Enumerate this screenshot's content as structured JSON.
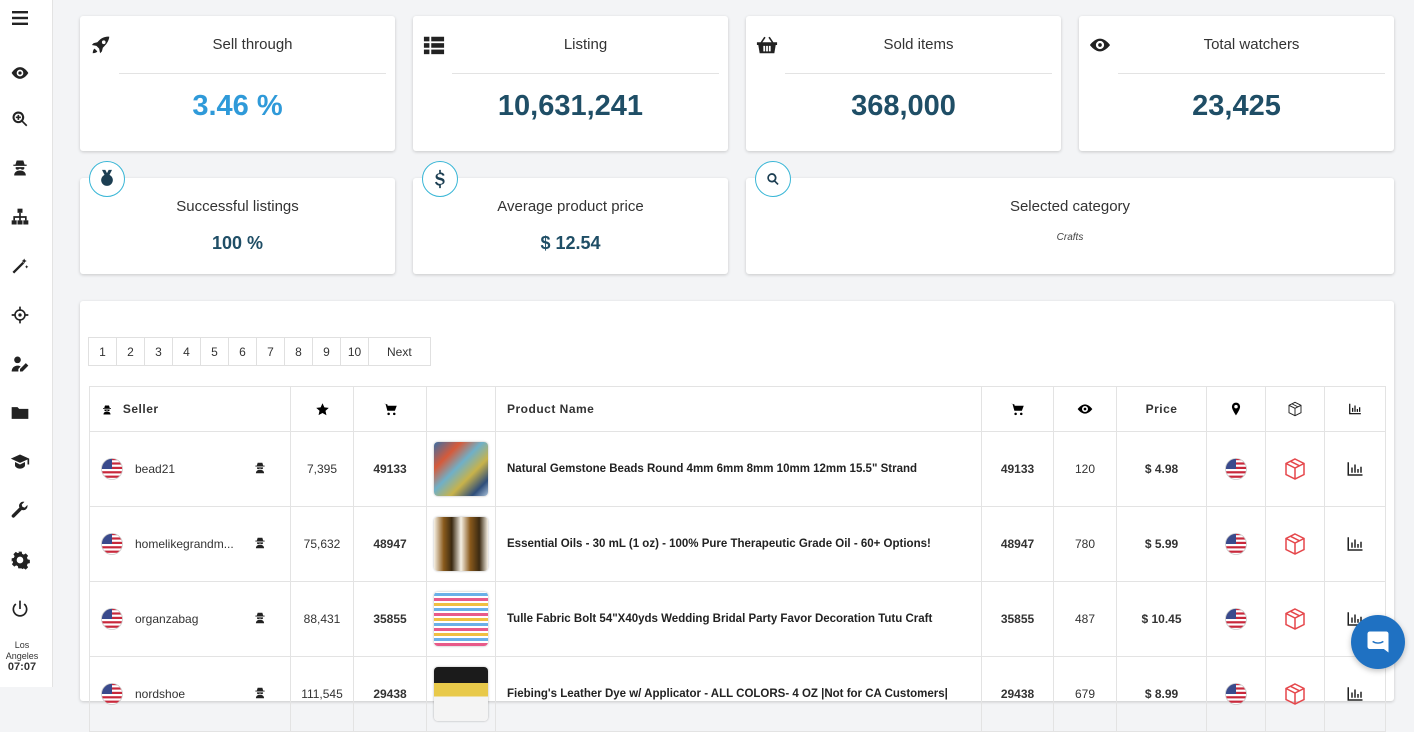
{
  "sidebar": {
    "icons": [
      "menu-icon",
      "eye-icon",
      "search-zoom-icon",
      "spy-icon",
      "sitemap-icon",
      "magic-wand-icon",
      "crosshair-icon",
      "user-edit-icon",
      "folder-icon",
      "graduation-icon",
      "wrench-icon",
      "gear-icon",
      "power-icon"
    ],
    "clock": {
      "city": "Los Angeles",
      "time": "07:07"
    }
  },
  "stats": [
    {
      "icon": "rocket-icon",
      "title": "Sell through",
      "value": "3.46 %",
      "accent": "#2f9ad9"
    },
    {
      "icon": "list-icon",
      "title": "Listing",
      "value": "10,631,241"
    },
    {
      "icon": "basket-icon",
      "title": "Sold items",
      "value": "368,000"
    },
    {
      "icon": "eye-icon",
      "title": "Total watchers",
      "value": "23,425"
    }
  ],
  "summary": {
    "successful": {
      "icon": "medal-icon",
      "title": "Successful listings",
      "value": "100 %"
    },
    "avg_price": {
      "icon": "dollar-icon",
      "title": "Average product price",
      "value": "$ 12.54"
    },
    "category": {
      "icon": "search-icon",
      "title": "Selected category",
      "value": "Crafts"
    }
  },
  "pagination": {
    "pages": [
      "1",
      "2",
      "3",
      "4",
      "5",
      "6",
      "7",
      "8",
      "9",
      "10"
    ],
    "next": "Next"
  },
  "table": {
    "columns": {
      "seller": "Seller",
      "product": "Product Name",
      "price": "Price"
    },
    "rows": [
      {
        "seller": "bead21",
        "rating": "7,395",
        "sold": "49133",
        "product": "Natural Gemstone Beads Round 4mm 6mm 8mm 10mm 12mm 15.5\" Strand",
        "sold2": "49133",
        "watchers": "120",
        "price": "$ 4.98"
      },
      {
        "seller": "homelikegrandm...",
        "rating": "75,632",
        "sold": "48947",
        "product": "Essential Oils - 30 mL (1 oz) - 100% Pure Therapeutic Grade Oil - 60+ Options!",
        "sold2": "48947",
        "watchers": "780",
        "price": "$ 5.99"
      },
      {
        "seller": "organzabag",
        "rating": "88,431",
        "sold": "35855",
        "product": "Tulle Fabric Bolt 54\"X40yds Wedding Bridal Party Favor Decoration Tutu Craft",
        "sold2": "35855",
        "watchers": "487",
        "price": "$ 10.45"
      },
      {
        "seller": "nordshoe",
        "rating": "111,545",
        "sold": "29438",
        "product": "Fiebing's Leather Dye w/ Applicator - ALL COLORS- 4 OZ |Not for CA Customers|",
        "sold2": "29438",
        "watchers": "679",
        "price": "$ 8.99"
      }
    ]
  },
  "colors": {
    "accent": "#2f9ad9",
    "value": "#1f4e66",
    "badge_border": "#38b6d6",
    "package": "#e5474b",
    "chat": "#1f71c2"
  }
}
